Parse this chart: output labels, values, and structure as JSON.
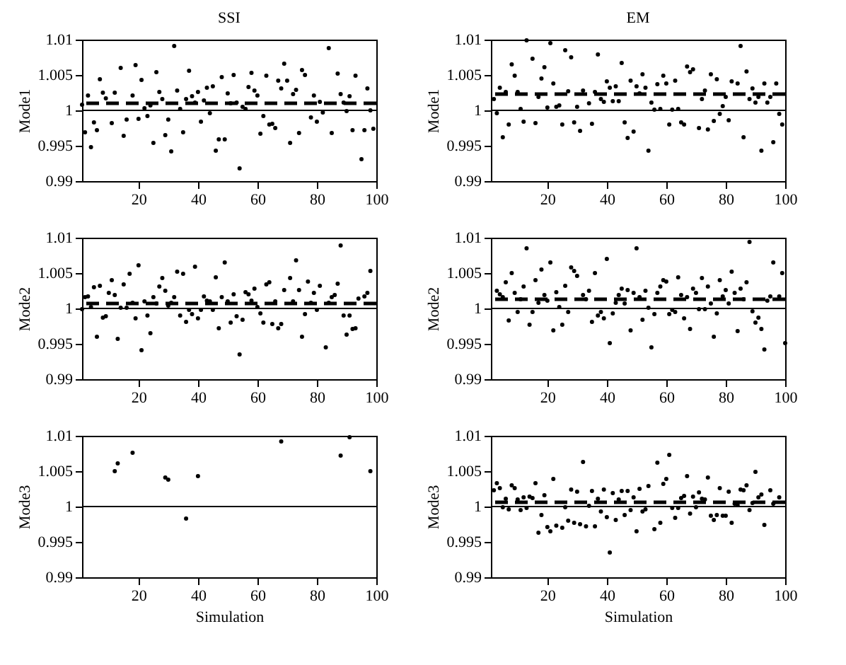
{
  "chart_data": [
    {
      "type": "scatter",
      "title": "SSI",
      "ylabel": "Mode1",
      "marker": "circle",
      "color": "#000000",
      "xlim": [
        1,
        100
      ],
      "xticks": [
        20,
        40,
        60,
        80,
        100
      ],
      "ylim": [
        0.99,
        1.01
      ],
      "yticks": [
        0.99,
        0.995,
        1,
        1.005,
        1.01
      ],
      "ref_lines": [
        {
          "axis": "y",
          "value": 1,
          "line_style": "solid"
        },
        {
          "axis": "y",
          "value": 1.001,
          "line_style": "dashed"
        }
      ],
      "x": [
        1,
        2,
        3,
        4,
        5,
        6,
        7,
        8,
        9,
        11,
        12,
        14,
        15,
        16,
        18,
        19,
        20,
        21,
        22,
        23,
        24,
        25,
        26,
        27,
        28,
        29,
        30,
        31,
        32,
        33,
        34,
        35,
        36,
        37,
        38,
        39,
        40,
        41,
        42,
        43,
        44,
        45,
        46,
        47,
        48,
        49,
        50,
        51,
        52,
        53,
        54,
        55,
        56,
        57,
        58,
        59,
        60,
        61,
        62,
        63,
        64,
        65,
        66,
        67,
        68,
        69,
        70,
        71,
        72,
        73,
        74,
        75,
        76,
        78,
        79,
        80,
        81,
        82,
        84,
        85,
        87,
        88,
        89,
        90,
        91,
        92,
        93,
        95,
        96,
        97,
        98,
        99
      ],
      "values": [
        1.0008,
        0.9969,
        1.0021,
        0.9948,
        0.9983,
        0.9972,
        1.0044,
        1.0025,
        1.0017,
        0.9982,
        1.0025,
        1.006,
        0.9964,
        0.9987,
        1.0021,
        1.0064,
        0.9988,
        1.0043,
        1.0003,
        0.9992,
        1.0007,
        0.9954,
        1.0054,
        1.0026,
        1.0016,
        0.9965,
        0.9987,
        0.9942,
        1.0091,
        1.0028,
        1.0002,
        0.9969,
        1.0016,
        1.0056,
        1.002,
        1.0011,
        1.0026,
        0.9984,
        1.0014,
        1.0032,
        0.9996,
        1.0034,
        0.9943,
        0.9959,
        1.0047,
        0.9959,
        1.0024,
        1.001,
        1.005,
        1.0011,
        0.9918,
        1.0005,
        1.0002,
        1.0033,
        1.0053,
        1.0028,
        1.0021,
        0.9967,
        0.9992,
        1.0049,
        0.998,
        0.9981,
        0.9975,
        1.0042,
        1.0031,
        1.0066,
        1.0042,
        0.9954,
        1.0023,
        1.0029,
        0.9968,
        1.0057,
        1.005,
        0.999,
        1.0021,
        0.9984,
        1.0012,
        0.9997,
        1.0088,
        0.9968,
        1.0052,
        1.0023,
        1.0011,
        0.9999,
        1.002,
        0.9972,
        1.0049,
        0.9931,
        0.9972,
        1.0031,
        1.0,
        0.9974
      ]
    },
    {
      "type": "scatter",
      "title": "EM",
      "ylabel": "Mode1",
      "marker": "circle",
      "color": "#000000",
      "xlim": [
        1,
        100
      ],
      "xticks": [
        20,
        40,
        60,
        80,
        100
      ],
      "ylim": [
        0.99,
        1.01
      ],
      "yticks": [
        0.99,
        0.995,
        1,
        1.005,
        1.01
      ],
      "ref_lines": [
        {
          "axis": "y",
          "value": 1,
          "line_style": "solid"
        },
        {
          "axis": "y",
          "value": 1.0023,
          "line_style": "dashed"
        }
      ],
      "x": [
        2,
        3,
        4,
        5,
        6,
        7,
        8,
        9,
        10,
        11,
        12,
        13,
        15,
        16,
        17,
        18,
        19,
        20,
        21,
        22,
        23,
        24,
        25,
        26,
        27,
        28,
        29,
        30,
        31,
        32,
        34,
        35,
        36,
        37,
        38,
        39,
        40,
        41,
        42,
        43,
        44,
        45,
        46,
        47,
        48,
        49,
        50,
        51,
        52,
        53,
        54,
        55,
        56,
        57,
        58,
        59,
        60,
        61,
        62,
        63,
        64,
        65,
        66,
        67,
        68,
        69,
        71,
        72,
        73,
        74,
        75,
        76,
        77,
        78,
        79,
        80,
        81,
        82,
        84,
        85,
        86,
        87,
        88,
        89,
        90,
        91,
        92,
        93,
        94,
        95,
        96,
        97,
        98,
        99
      ],
      "values": [
        1.0016,
        0.9996,
        1.0032,
        0.9962,
        1.0026,
        0.998,
        1.0065,
        1.0049,
        1.0026,
        1.0002,
        0.9984,
        1.0099,
        1.0073,
        0.9982,
        1.0019,
        1.0045,
        1.0061,
        1.0004,
        1.0095,
        1.0038,
        1.0005,
        1.0007,
        0.998,
        1.0085,
        1.0027,
        1.0075,
        0.9983,
        1.0005,
        0.9971,
        1.0028,
        1.001,
        0.9981,
        1.0026,
        1.0079,
        1.0016,
        1.0012,
        1.0041,
        1.0032,
        1.0013,
        1.0034,
        1.0013,
        1.0067,
        0.9983,
        0.9961,
        1.0042,
        0.997,
        1.0034,
        1.0024,
        1.0051,
        1.0032,
        0.9943,
        1.0011,
        1.0001,
        1.0037,
        1.0002,
        1.0049,
        1.0038,
        0.998,
        1.0001,
        1.0042,
        1.0002,
        0.9983,
        0.998,
        1.0062,
        1.0054,
        1.0058,
        0.9975,
        1.0016,
        1.0028,
        0.9973,
        1.0051,
        0.9985,
        1.0044,
        0.9995,
        1.0006,
        1.0019,
        0.9986,
        1.0041,
        1.0038,
        1.0091,
        0.9962,
        1.0055,
        1.0016,
        1.0031,
        1.0011,
        1.0019,
        0.9943,
        1.0038,
        1.0011,
        1.0019,
        0.9955,
        1.0038,
        0.9995,
        0.998
      ]
    },
    {
      "type": "scatter",
      "ylabel": "Mode2",
      "marker": "circle",
      "color": "#000000",
      "xlim": [
        1,
        100
      ],
      "xticks": [
        20,
        40,
        60,
        80,
        100
      ],
      "ylim": [
        0.99,
        1.01
      ],
      "yticks": [
        0.99,
        0.995,
        1,
        1.005,
        1.01
      ],
      "ref_lines": [
        {
          "axis": "y",
          "value": 1,
          "line_style": "solid"
        },
        {
          "axis": "y",
          "value": 1.0007,
          "line_style": "dashed"
        }
      ],
      "x": [
        1,
        2,
        3,
        4,
        5,
        6,
        7,
        8,
        9,
        10,
        11,
        12,
        13,
        14,
        15,
        16,
        17,
        18,
        19,
        20,
        21,
        22,
        23,
        24,
        25,
        26,
        27,
        28,
        29,
        30,
        31,
        32,
        33,
        34,
        35,
        36,
        37,
        38,
        39,
        40,
        41,
        42,
        43,
        44,
        45,
        46,
        47,
        48,
        49,
        50,
        51,
        52,
        53,
        54,
        55,
        56,
        57,
        58,
        59,
        60,
        61,
        62,
        63,
        64,
        65,
        66,
        67,
        68,
        69,
        71,
        72,
        73,
        74,
        75,
        76,
        77,
        78,
        79,
        80,
        81,
        83,
        84,
        85,
        86,
        87,
        88,
        89,
        90,
        91,
        92,
        93,
        94,
        96,
        97,
        98
      ],
      "values": [
        0.9999,
        1.0016,
        1.0017,
        1.0002,
        1.003,
        0.996,
        1.0032,
        0.9987,
        0.9989,
        1.0022,
        1.004,
        1.0019,
        0.9957,
        1.0001,
        1.0034,
        1.0001,
        1.0049,
        1.0008,
        0.9986,
        1.0061,
        0.9941,
        1.001,
        0.999,
        0.9965,
        1.0016,
        1.0007,
        1.0031,
        1.0043,
        1.0025,
        1.0004,
        1.0008,
        1.0016,
        1.0052,
        0.999,
        1.0049,
        0.9981,
        0.9998,
        0.9992,
        1.0059,
        0.9986,
        0.9998,
        1.0017,
        1.0011,
        1.001,
        0.9998,
        1.0044,
        0.9972,
        1.0016,
        1.0065,
        1.001,
        0.998,
        1.002,
        0.9989,
        0.9935,
        0.9984,
        1.0023,
        1.002,
        1.0011,
        1.0028,
        1.0002,
        0.9993,
        0.998,
        1.0034,
        1.0037,
        0.9978,
        1.001,
        0.9972,
        0.9978,
        1.0026,
        1.0043,
        1.001,
        1.0068,
        1.0026,
        0.996,
        0.9992,
        1.0038,
        1.0008,
        1.0022,
        0.9998,
        1.0032,
        0.9945,
        1.0008,
        1.0016,
        1.0019,
        1.0035,
        1.0089,
        0.999,
        0.9963,
        0.999,
        0.9971,
        0.9972,
        1.0014,
        1.0017,
        1.0022,
        1.0053
      ]
    },
    {
      "type": "scatter",
      "ylabel": "Mode2",
      "marker": "circle",
      "color": "#000000",
      "xlim": [
        1,
        100
      ],
      "xticks": [
        20,
        40,
        60,
        80,
        100
      ],
      "ylim": [
        0.99,
        1.01
      ],
      "yticks": [
        0.99,
        0.995,
        1,
        1.005,
        1.01
      ],
      "ref_lines": [
        {
          "axis": "y",
          "value": 1,
          "line_style": "solid"
        },
        {
          "axis": "y",
          "value": 1.0013,
          "line_style": "dashed"
        }
      ],
      "x": [
        3,
        4,
        5,
        6,
        7,
        8,
        9,
        10,
        11,
        12,
        13,
        14,
        15,
        16,
        17,
        18,
        19,
        20,
        21,
        22,
        23,
        24,
        25,
        26,
        27,
        28,
        29,
        30,
        32,
        33,
        34,
        35,
        36,
        37,
        38,
        39,
        40,
        41,
        42,
        43,
        44,
        45,
        46,
        47,
        48,
        49,
        50,
        51,
        52,
        53,
        54,
        55,
        56,
        57,
        58,
        59,
        60,
        61,
        62,
        63,
        64,
        65,
        66,
        67,
        68,
        69,
        70,
        71,
        72,
        73,
        74,
        75,
        76,
        77,
        78,
        79,
        80,
        81,
        82,
        83,
        84,
        85,
        86,
        87,
        88,
        89,
        90,
        91,
        92,
        93,
        94,
        95,
        96,
        98,
        99,
        100
      ],
      "values": [
        1.0025,
        1.002,
        1.0016,
        1.0037,
        0.9983,
        1.005,
        1.0022,
        0.9995,
        1.0013,
        1.0031,
        1.0085,
        0.9977,
        0.9995,
        1.004,
        1.0008,
        1.0055,
        1.0019,
        1.0011,
        1.0065,
        0.9969,
        1.0023,
        1.0002,
        0.9977,
        1.0032,
        0.9995,
        1.0058,
        1.0053,
        1.0046,
        1.0019,
        1.0013,
        1.0025,
        0.9981,
        1.005,
        0.999,
        0.9995,
        0.9986,
        1.007,
        0.9951,
        0.9993,
        1.0008,
        1.0019,
        1.0028,
        1.0007,
        1.0026,
        0.9969,
        1.0022,
        1.0085,
        1.0016,
        0.9984,
        1.0025,
        1.0001,
        0.9945,
        0.9992,
        1.0022,
        1.0031,
        1.004,
        1.0038,
        0.9992,
        0.9998,
        0.9995,
        1.0044,
        1.0019,
        0.9986,
        1.0016,
        0.9971,
        1.0028,
        1.0022,
        0.9999,
        1.0043,
        0.9999,
        1.0031,
        1.0007,
        0.996,
        0.9993,
        1.004,
        1.0017,
        1.0026,
        1.0007,
        1.0052,
        1.0022,
        0.9968,
        1.0028,
        1.0013,
        1.0037,
        1.0094,
        0.9996,
        0.998,
        0.9987,
        0.9971,
        0.9942,
        1.0011,
        1.0017,
        1.0065,
        1.0017,
        1.005,
        0.9951
      ]
    },
    {
      "type": "scatter",
      "ylabel": "Mode3",
      "xlabel": "Simulation",
      "marker": "circle",
      "color": "#000000",
      "xlim": [
        1,
        100
      ],
      "xticks": [
        20,
        40,
        60,
        80,
        100
      ],
      "ylim": [
        0.99,
        1.01
      ],
      "yticks": [
        0.99,
        0.995,
        1,
        1.005,
        1.01
      ],
      "ref_lines": [
        {
          "axis": "y",
          "value": 1,
          "line_style": "solid"
        }
      ],
      "x": [
        12,
        13,
        18,
        29,
        30,
        36,
        40,
        68,
        88,
        91,
        98
      ],
      "values": [
        1.005,
        1.0061,
        1.0076,
        1.0041,
        1.0038,
        0.9983,
        1.0043,
        1.0092,
        1.0072,
        1.0098,
        1.005
      ]
    },
    {
      "type": "scatter",
      "ylabel": "Mode3",
      "xlabel": "Simulation",
      "marker": "circle",
      "color": "#000000",
      "xlim": [
        1,
        100
      ],
      "xticks": [
        20,
        40,
        60,
        80,
        100
      ],
      "ylim": [
        0.99,
        1.01
      ],
      "yticks": [
        0.99,
        0.995,
        1,
        1.005,
        1.01
      ],
      "ref_lines": [
        {
          "axis": "y",
          "value": 1,
          "line_style": "solid"
        },
        {
          "axis": "y",
          "value": 1.0006,
          "line_style": "dashed"
        }
      ],
      "x": [
        2,
        3,
        4,
        5,
        6,
        7,
        8,
        9,
        10,
        11,
        12,
        13,
        14,
        15,
        16,
        17,
        18,
        19,
        20,
        21,
        22,
        23,
        25,
        26,
        27,
        28,
        29,
        30,
        31,
        32,
        33,
        34,
        35,
        36,
        37,
        38,
        39,
        40,
        41,
        42,
        43,
        44,
        45,
        46,
        47,
        48,
        49,
        50,
        51,
        52,
        53,
        54,
        56,
        57,
        58,
        59,
        60,
        61,
        62,
        63,
        64,
        65,
        66,
        67,
        68,
        69,
        70,
        71,
        72,
        73,
        74,
        75,
        76,
        77,
        78,
        79,
        80,
        81,
        82,
        83,
        84,
        85,
        86,
        87,
        88,
        89,
        90,
        91,
        92,
        93,
        95,
        96,
        98
      ],
      "values": [
        1.0023,
        1.0033,
        1.0026,
        0.9999,
        1.0011,
        0.9996,
        1.003,
        1.0026,
        1.001,
        0.9995,
        1.0013,
        0.9998,
        1.0014,
        1.0012,
        1.0033,
        0.9963,
        0.9988,
        1.0016,
        0.9971,
        0.9965,
        1.0039,
        0.9973,
        0.997,
        0.9999,
        0.998,
        1.0024,
        0.9977,
        1.0021,
        0.9975,
        1.0063,
        0.9972,
        1.0001,
        1.0022,
        0.9972,
        1.0011,
        0.9993,
        1.0024,
        0.9985,
        0.9935,
        1.0019,
        0.9981,
        1.001,
        1.0022,
        0.9988,
        1.0022,
        0.9995,
        1.0013,
        0.9965,
        1.0025,
        0.9993,
        0.9996,
        1.0029,
        0.9968,
        1.0062,
        0.9977,
        1.0032,
        1.0039,
        1.0073,
        0.9998,
        0.9984,
        0.9998,
        1.0012,
        1.0015,
        1.0043,
        0.999,
        1.0014,
        0.9999,
        1.002,
        1.0011,
        1.001,
        1.0041,
        0.9987,
        0.9981,
        0.9988,
        1.0026,
        0.9987,
        0.9987,
        1.0021,
        0.9977,
        1.0004,
        1.0002,
        1.0024,
        1.0023,
        1.003,
        0.9995,
        1.0005,
        1.0049,
        1.0013,
        1.0017,
        0.9974,
        1.0023,
        1.0004,
        1.0013
      ]
    }
  ]
}
